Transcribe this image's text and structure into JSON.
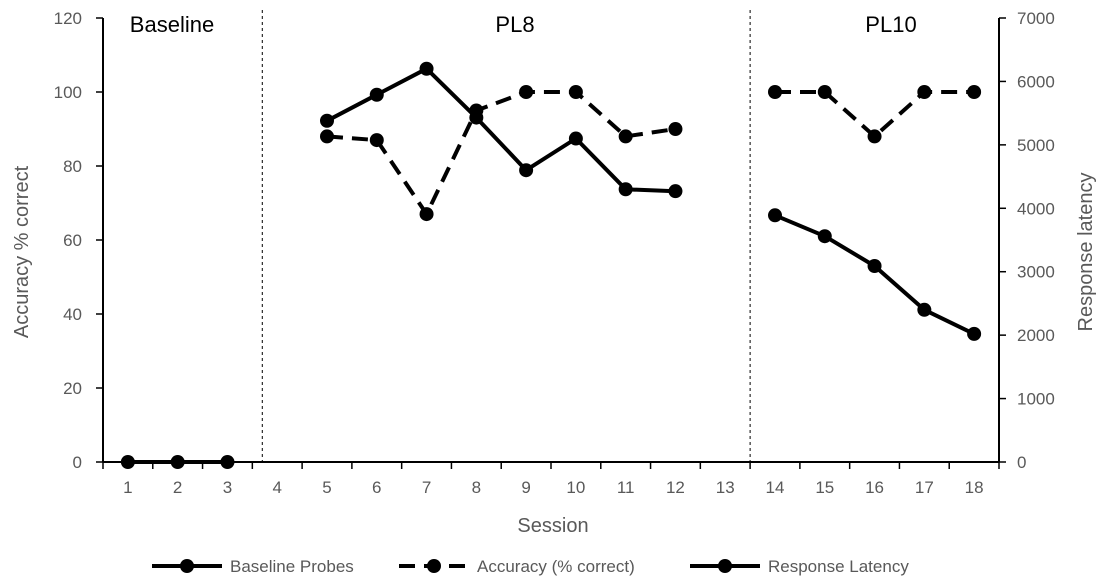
{
  "chart_data": {
    "type": "line",
    "x": [
      1,
      2,
      3,
      4,
      5,
      6,
      7,
      8,
      9,
      10,
      11,
      12,
      13,
      14,
      15,
      16,
      17,
      18
    ],
    "xlabel": "Session",
    "ylabel_left": "Accuracy % correct",
    "ylabel_right": "Response latency",
    "ylim_left": [
      0,
      120
    ],
    "ylim_right": [
      0,
      7000
    ],
    "yticks_left": [
      "0",
      "20",
      "40",
      "60",
      "80",
      "100",
      "120"
    ],
    "yticks_right": [
      "0",
      "1000",
      "2000",
      "3000",
      "4000",
      "5000",
      "6000",
      "7000"
    ],
    "phases": [
      {
        "label": "Baseline",
        "sessions": [
          1,
          3
        ]
      },
      {
        "label": "PL8",
        "sessions": [
          4,
          13
        ]
      },
      {
        "label": "PL10",
        "sessions": [
          14,
          18
        ]
      }
    ],
    "phase_change_after": [
      3.7,
      13.5
    ],
    "series": [
      {
        "name": "Baseline Probes",
        "axis": "left",
        "style": "solid",
        "points": [
          [
            1,
            0
          ],
          [
            2,
            0
          ],
          [
            3,
            0
          ]
        ]
      },
      {
        "name": "Accuracy (% correct)",
        "axis": "left",
        "style": "dashed",
        "segments": [
          [
            [
              5,
              88
            ],
            [
              6,
              87
            ],
            [
              7,
              67
            ],
            [
              8,
              95
            ],
            [
              9,
              100
            ],
            [
              10,
              100
            ],
            [
              11,
              88
            ],
            [
              12,
              90
            ]
          ],
          [
            [
              14,
              100
            ],
            [
              15,
              100
            ],
            [
              16,
              88
            ],
            [
              17,
              100
            ],
            [
              18,
              100
            ]
          ]
        ]
      },
      {
        "name": "Response Latency",
        "axis": "right",
        "style": "solid",
        "segments": [
          [
            [
              5,
              5380
            ],
            [
              6,
              5790
            ],
            [
              7,
              6200
            ],
            [
              8,
              5430
            ],
            [
              9,
              4600
            ],
            [
              10,
              5100
            ],
            [
              11,
              4300
            ],
            [
              12,
              4270
            ]
          ],
          [
            [
              14,
              3890
            ],
            [
              15,
              3560
            ],
            [
              16,
              3090
            ],
            [
              17,
              2400
            ],
            [
              18,
              2020
            ]
          ]
        ]
      }
    ],
    "legend_position": "bottom",
    "grid": false,
    "colors": {
      "series": "#000000",
      "axis": "#000000",
      "text": "#595959"
    }
  }
}
